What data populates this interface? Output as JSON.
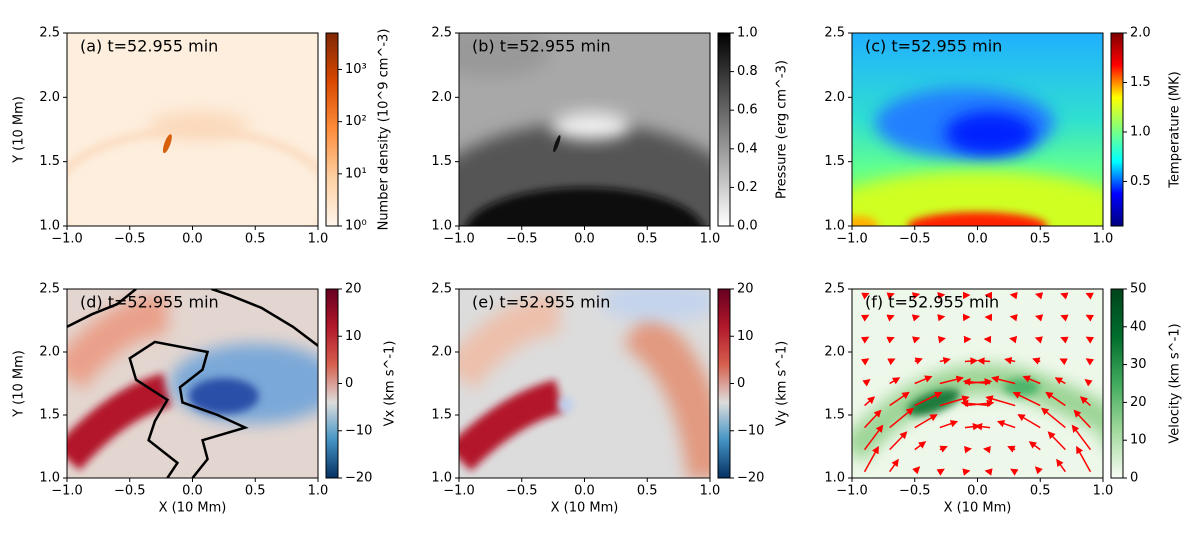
{
  "chart_data": [
    {
      "type": "heatmap",
      "title": "(a) t=52.955 min",
      "ylabel": "Y (10 Mm)",
      "xlim": [
        -1,
        1
      ],
      "ylim": [
        1,
        2.5
      ],
      "xticks": [
        {
          "value": -1,
          "label": "−1.0"
        },
        {
          "value": -0.5,
          "label": "−0.5"
        },
        {
          "value": 0,
          "label": "0.0"
        },
        0.5,
        {
          "value": 1,
          "label": "1.0"
        }
      ],
      "yticks": [
        {
          "value": 1,
          "label": "1.0"
        },
        1.5,
        {
          "value": 2,
          "label": "2.0"
        },
        2.5
      ],
      "colorbar": {
        "label": "Number density (10^9 cm^-3)",
        "scale": "log",
        "lim": [
          1,
          5000
        ],
        "ticks": [
          {
            "value": 1,
            "label": "10⁰"
          },
          {
            "value": 10,
            "label": "10¹"
          },
          {
            "value": 100,
            "label": "10²"
          },
          {
            "value": 1000,
            "label": "10³"
          }
        ],
        "colors": [
          "#fff5eb",
          "#fdd0a2",
          "#fd8d3c",
          "#d94801",
          "#7f2704"
        ]
      }
    },
    {
      "type": "heatmap",
      "title": "(b) t=52.955 min",
      "xlim": [
        -1,
        1
      ],
      "ylim": [
        1,
        2.5
      ],
      "xticks": [
        {
          "value": -1,
          "label": "−1.0"
        },
        {
          "value": -0.5,
          "label": "−0.5"
        },
        {
          "value": 0,
          "label": "0.0"
        },
        0.5,
        {
          "value": 1,
          "label": "1.0"
        }
      ],
      "yticks": [
        {
          "value": 1,
          "label": "1.0"
        },
        1.5,
        {
          "value": 2,
          "label": "2.0"
        },
        2.5
      ],
      "colorbar": {
        "label": "Pressure (erg cm^-3)",
        "scale": "linear",
        "lim": [
          0,
          1
        ],
        "ticks": [
          {
            "value": 0,
            "label": "0.0"
          },
          0.2,
          0.4,
          0.6,
          0.8,
          {
            "value": 1,
            "label": "1.0"
          }
        ],
        "colors": [
          "#ffffff",
          "#000000"
        ]
      }
    },
    {
      "type": "heatmap",
      "title": "(c) t=52.955 min",
      "xlim": [
        -1,
        1
      ],
      "ylim": [
        1,
        2.5
      ],
      "xticks": [
        {
          "value": -1,
          "label": "−1.0"
        },
        {
          "value": -0.5,
          "label": "−0.5"
        },
        {
          "value": 0,
          "label": "0.0"
        },
        0.5,
        {
          "value": 1,
          "label": "1.0"
        }
      ],
      "yticks": [
        {
          "value": 1,
          "label": "1.0"
        },
        1.5,
        {
          "value": 2,
          "label": "2.0"
        },
        2.5
      ],
      "colorbar": {
        "label": "Temperature (MK)",
        "scale": "linear",
        "lim": [
          0.05,
          2
        ],
        "ticks": [
          0.5,
          {
            "value": 1,
            "label": "1.0"
          },
          1.5,
          {
            "value": 2,
            "label": "2.0"
          }
        ],
        "colors": [
          "#00007f",
          "#0000ff",
          "#00ffff",
          "#7fff7f",
          "#ffff00",
          "#ff0000",
          "#7f0000"
        ]
      }
    },
    {
      "type": "heatmap",
      "title": "(d) t=52.955 min",
      "ylabel": "Y (10 Mm)",
      "xlabel": "X (10 Mm)",
      "xlim": [
        -1,
        1
      ],
      "ylim": [
        1,
        2.5
      ],
      "xticks": [
        {
          "value": -1,
          "label": "−1.0"
        },
        {
          "value": -0.5,
          "label": "−0.5"
        },
        {
          "value": 0,
          "label": "0.0"
        },
        0.5,
        {
          "value": 1,
          "label": "1.0"
        }
      ],
      "yticks": [
        {
          "value": 1,
          "label": "1.0"
        },
        1.5,
        {
          "value": 2,
          "label": "2.0"
        },
        2.5
      ],
      "colorbar": {
        "label": "Vx (km s^-1)",
        "scale": "linear",
        "lim": [
          -20,
          20
        ],
        "ticks": [
          {
            "value": -20,
            "label": "−20"
          },
          {
            "value": -10,
            "label": "−10"
          },
          0,
          10,
          20
        ],
        "colors": [
          "#053061",
          "#4393c3",
          "#dddddd",
          "#d6604d",
          "#b2182b",
          "#67001f"
        ]
      }
    },
    {
      "type": "heatmap",
      "title": "(e) t=52.955 min",
      "xlabel": "X (10 Mm)",
      "xlim": [
        -1,
        1
      ],
      "ylim": [
        1,
        2.5
      ],
      "xticks": [
        {
          "value": -1,
          "label": "−1.0"
        },
        {
          "value": -0.5,
          "label": "−0.5"
        },
        {
          "value": 0,
          "label": "0.0"
        },
        0.5,
        {
          "value": 1,
          "label": "1.0"
        }
      ],
      "yticks": [
        {
          "value": 1,
          "label": "1.0"
        },
        1.5,
        {
          "value": 2,
          "label": "2.0"
        },
        2.5
      ],
      "colorbar": {
        "label": "Vy (km s^-1)",
        "scale": "linear",
        "lim": [
          -20,
          20
        ],
        "ticks": [
          {
            "value": -20,
            "label": "−20"
          },
          {
            "value": -10,
            "label": "−10"
          },
          0,
          10,
          20
        ],
        "colors": [
          "#053061",
          "#4393c3",
          "#dddddd",
          "#d6604d",
          "#b2182b",
          "#67001f"
        ]
      }
    },
    {
      "type": "heatmap",
      "title": "(f) t=52.955 min",
      "xlabel": "X (10 Mm)",
      "xlim": [
        -1,
        1
      ],
      "ylim": [
        1,
        2.5
      ],
      "xticks": [
        {
          "value": -1,
          "label": "−1.0"
        },
        {
          "value": -0.5,
          "label": "−0.5"
        },
        {
          "value": 0,
          "label": "0.0"
        },
        0.5,
        {
          "value": 1,
          "label": "1.0"
        }
      ],
      "yticks": [
        {
          "value": 1,
          "label": "1.0"
        },
        1.5,
        {
          "value": 2,
          "label": "2.0"
        },
        2.5
      ],
      "colorbar": {
        "label": "Velocity (km s^-1)",
        "scale": "linear",
        "lim": [
          0,
          50
        ],
        "ticks": [
          0,
          10,
          20,
          30,
          40,
          50
        ],
        "colors": [
          "#f7fcf5",
          "#a1d99b",
          "#41ab5d",
          "#006d2c",
          "#00441b"
        ]
      }
    }
  ]
}
